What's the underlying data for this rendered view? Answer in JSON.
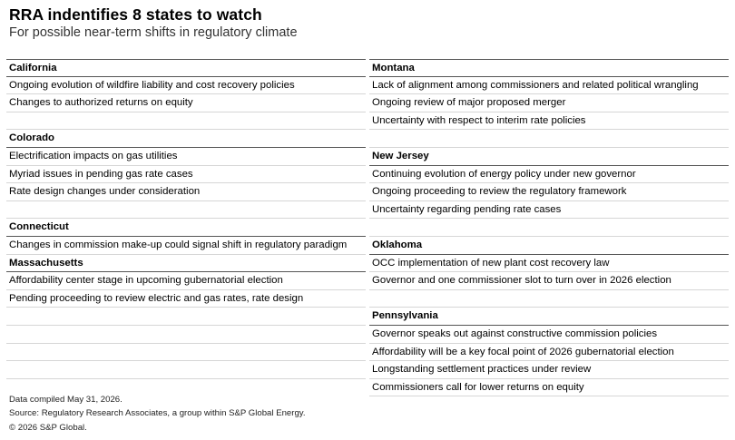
{
  "title": "RRA indentifies 8 states to watch",
  "subtitle": "For possible near-term shifts in regulatory climate",
  "left_column": [
    {
      "state": "California",
      "items": [
        "Ongoing evolution of wildfire liability and cost recovery policies",
        "Changes to authorized returns on equity"
      ]
    },
    {
      "state": "Colorado",
      "items": [
        "Electrification impacts on gas utilities",
        "Myriad issues in pending gas rate cases",
        "Rate design changes under consideration"
      ]
    },
    {
      "state": "Connecticut",
      "items": [
        "Changes in commission make-up could signal shift in regulatory paradigm"
      ]
    },
    {
      "state": "Massachusetts",
      "items": [
        "Affordability center stage in upcoming gubernatorial election",
        "Pending proceeding to review electric and gas rates, rate design"
      ]
    }
  ],
  "right_column": [
    {
      "state": "Montana",
      "items": [
        "Lack of alignment among commissioners and related political wrangling",
        "Ongoing review of major proposed merger",
        "Uncertainty with respect to interim rate policies"
      ]
    },
    {
      "state": "New Jersey",
      "items": [
        "Continuing evolution of energy policy under new governor",
        "Ongoing proceeding to review the regulatory framework",
        "Uncertainty regarding pending rate cases"
      ]
    },
    {
      "state": "Oklahoma",
      "items": [
        "OCC implementation of new plant cost recovery law",
        "Governor and one commissioner slot to turn over in 2026 election"
      ]
    },
    {
      "state": "Pennsylvania",
      "items": [
        "Governor speaks out against constructive commission policies",
        "Affordability will be a key focal point of 2026 gubernatorial election",
        "Longstanding settlement practices under review",
        "Commissioners call for lower returns on equity"
      ]
    }
  ],
  "footer": {
    "compiled": "Data compiled May 31, 2026.",
    "source": "Source: Regulatory Research Associates, a group within S&P Global Energy.",
    "copyright": "© 2026 S&P Global."
  }
}
